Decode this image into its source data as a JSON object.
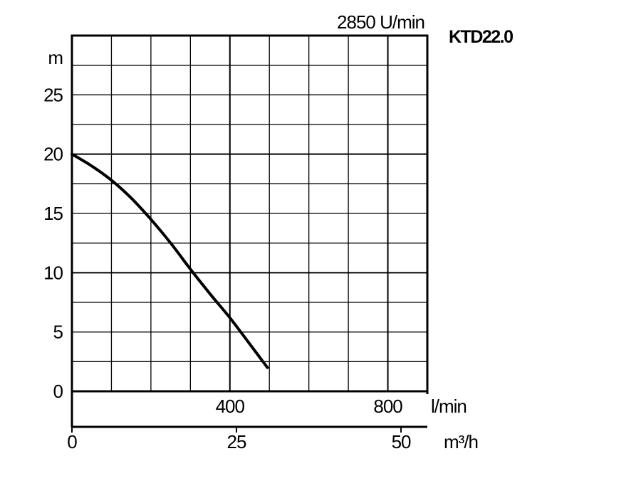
{
  "chart_data": {
    "type": "line",
    "speed_label": "2850 U/min",
    "model_label": "KTD22.0",
    "ylabel": "m",
    "xlabel_lmin": "l/min",
    "xlabel_m3h": "m³/h",
    "ylim": [
      0,
      30
    ],
    "xlim_lmin": [
      0,
      900
    ],
    "x_ticks_lmin": [
      400,
      800
    ],
    "x_tick_labels_lmin": [
      "400",
      "800"
    ],
    "x_ticks_m3h": [
      0,
      25,
      50
    ],
    "x_tick_labels_m3h": [
      "0",
      "25",
      "50"
    ],
    "y_ticks": [
      0,
      5,
      10,
      15,
      20,
      25
    ],
    "y_tick_labels": [
      "0",
      "5",
      "10",
      "15",
      "20",
      "25"
    ],
    "grid": true,
    "series": [
      {
        "x": [
          0,
          50,
          100,
          150,
          200,
          250,
          300,
          350,
          400,
          450,
          495
        ],
        "y": [
          20,
          19,
          17.8,
          16.3,
          14.5,
          12.5,
          10.3,
          8.2,
          6.2,
          4,
          2
        ]
      }
    ]
  }
}
